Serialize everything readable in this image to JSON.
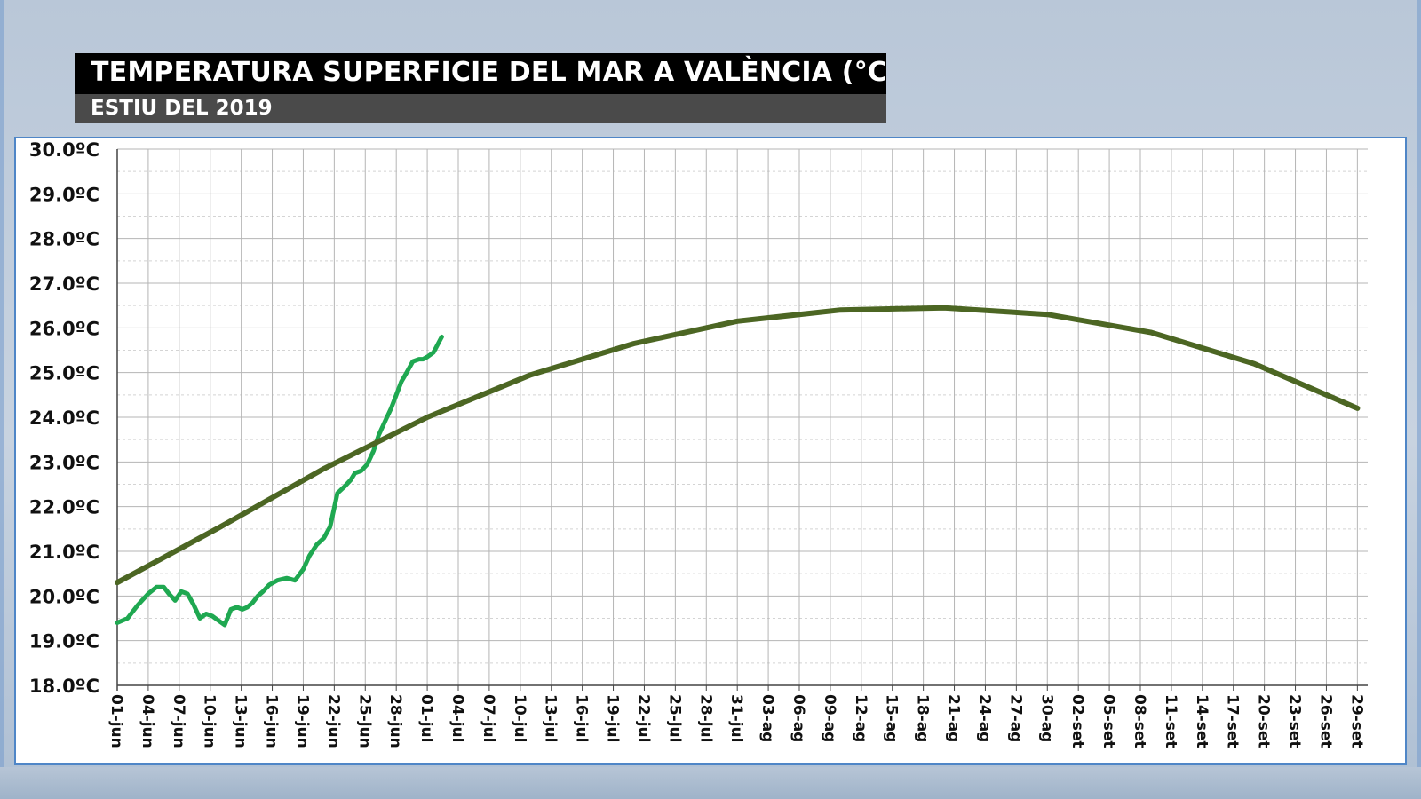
{
  "header": {
    "title": "TEMPERATURA SUPERFICIE DEL MAR A VALÈNCIA (°C)",
    "subtitle": "ESTIU DEL 2019"
  },
  "colors": {
    "observed": "#1fa851",
    "climatology": "#4c6623",
    "title_bg": "#000000",
    "subtitle_bg": "#4a4a4a",
    "panel_border": "#4f86c7"
  },
  "chart_data": {
    "type": "line",
    "title": "TEMPERATURA SUPERFICIE DEL MAR A VALÈNCIA (°C)",
    "subtitle": "ESTIU DEL 2019",
    "ylim": [
      18,
      30
    ],
    "y_tick_labels": [
      "18.0ºC",
      "19.0ºC",
      "20.0ºC",
      "21.0ºC",
      "22.0ºC",
      "23.0ºC",
      "24.0ºC",
      "25.0ºC",
      "26.0ºC",
      "27.0ºC",
      "28.0ºC",
      "29.0ºC",
      "30.0ºC"
    ],
    "x_tick_labels": [
      "01-jun",
      "04-jun",
      "07-jun",
      "10-jun",
      "13-jun",
      "16-jun",
      "19-jun",
      "22-jun",
      "25-jun",
      "28-jun",
      "01-jul",
      "04-jul",
      "07-jul",
      "10-jul",
      "13-jul",
      "16-jul",
      "19-jul",
      "22-jul",
      "25-jul",
      "28-jul",
      "31-jul",
      "03-ag",
      "06-ag",
      "09-ag",
      "12-ag",
      "15-ag",
      "18-ag",
      "21-ag",
      "24-ag",
      "27-ag",
      "30-ag",
      "02-set",
      "05-set",
      "08-set",
      "11-set",
      "14-set",
      "17-set",
      "20-set",
      "23-set",
      "26-set",
      "29-set"
    ],
    "x_tick_days": [
      0,
      3,
      6,
      9,
      12,
      15,
      18,
      21,
      24,
      27,
      30,
      33,
      36,
      39,
      42,
      45,
      48,
      51,
      54,
      57,
      60,
      63,
      66,
      69,
      72,
      75,
      78,
      81,
      84,
      87,
      90,
      93,
      96,
      99,
      102,
      105,
      108,
      111,
      114,
      117,
      120
    ],
    "x_range_days": [
      0,
      121
    ],
    "grid": true,
    "series": [
      {
        "key": "observed",
        "x_days": [
          0,
          1,
          2,
          3,
          3.8,
          4.5,
          5,
          5.6,
          6.2,
          6.8,
          7.4,
          8,
          8.6,
          9.2,
          9.8,
          10.4,
          11,
          11.6,
          12.1,
          12.6,
          13.1,
          13.6,
          14.1,
          14.7,
          15.5,
          16.4,
          17.2,
          18,
          18.6,
          19.3,
          20,
          20.6,
          21.3,
          22,
          22.6,
          23,
          23.6,
          24.2,
          24.8,
          25.3,
          26,
          26.5,
          27,
          27.5,
          28,
          28.6,
          29.2,
          29.6,
          30,
          30.6,
          31.4,
          32.1,
          32.6,
          33.1,
          33.6
        ],
        "values": [
          19.4,
          19.5,
          19.8,
          20.05,
          20.2,
          20.2,
          20.05,
          19.9,
          20.1,
          20.05,
          19.8,
          19.5,
          19.6,
          19.55,
          19.45,
          19.35,
          19.7,
          19.75,
          19.7,
          19.75,
          19.85,
          20.0,
          20.1,
          20.25,
          20.35,
          20.4,
          20.35,
          20.6,
          20.9,
          21.15,
          21.3,
          21.55,
          22.3,
          22.45,
          22.6,
          22.75,
          22.8,
          22.95,
          23.25,
          23.6,
          23.95,
          24.2,
          24.5,
          24.8,
          25.0,
          25.25,
          25.3,
          25.3,
          25.35,
          25.45,
          25.8,
          null,
          null,
          null,
          null
        ]
      },
      {
        "key": "climatology",
        "x_days": [
          0,
          10,
          20,
          30,
          40,
          50,
          60,
          70,
          80,
          90,
          100,
          110,
          120
        ],
        "values": [
          20.3,
          21.55,
          22.85,
          24.0,
          24.95,
          25.65,
          26.15,
          26.4,
          26.45,
          26.3,
          25.9,
          25.2,
          24.2
        ]
      }
    ]
  }
}
